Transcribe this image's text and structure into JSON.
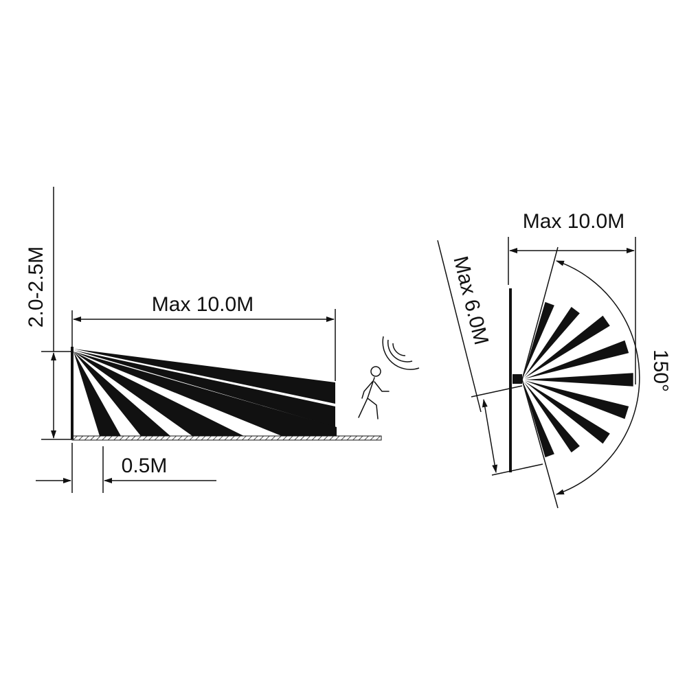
{
  "side_view": {
    "height_label": "2.0-2.5M",
    "range_label": "Max 10.0M",
    "offset_label": "0.5M"
  },
  "top_view": {
    "range_label": "Max 10.0M",
    "width_label": "Max 6.0M",
    "angle_label": "150°"
  }
}
